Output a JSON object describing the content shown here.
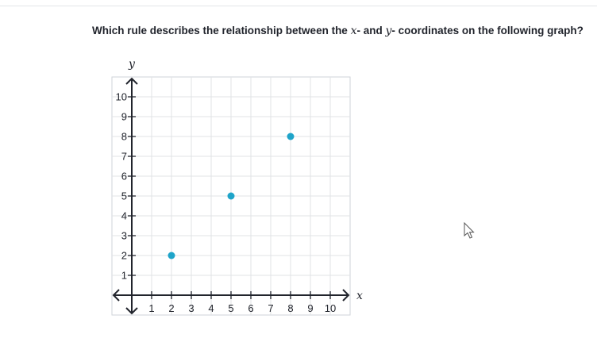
{
  "question": {
    "part1": "Which rule describes the relationship between the ",
    "var_x": "x",
    "part2": "- and ",
    "var_y": "y",
    "part3": "- coordinates on the following graph?"
  },
  "chart_data": {
    "type": "scatter",
    "title": "",
    "xlabel": "x",
    "ylabel": "y",
    "xlim": [
      -1,
      11
    ],
    "ylim": [
      -1,
      11
    ],
    "xticks": [
      1,
      2,
      3,
      4,
      5,
      6,
      7,
      8,
      9,
      10
    ],
    "yticks": [
      1,
      2,
      3,
      4,
      5,
      6,
      7,
      8,
      9,
      10
    ],
    "grid": true,
    "series": [
      {
        "points": [
          [
            2,
            2
          ],
          [
            5,
            5
          ],
          [
            8,
            8
          ]
        ]
      }
    ],
    "colors": {
      "point": "#1fa4c9",
      "grid": "#e1e3e6",
      "axis": "#21242c",
      "frame": "#cfd3d8"
    }
  },
  "cursor": {
    "icon": "mouse-pointer-icon"
  }
}
